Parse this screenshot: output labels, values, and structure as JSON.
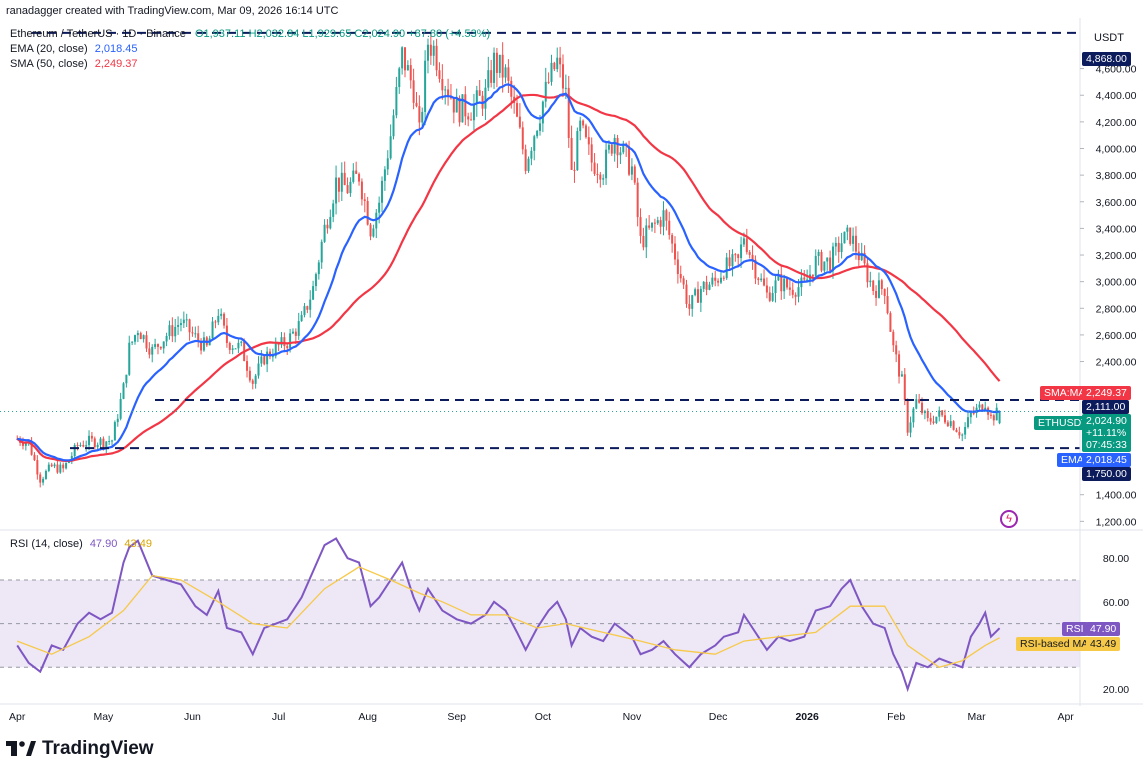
{
  "header": {
    "credit": "ranadagger created with TradingView.com, Mar 09, 2026 16:14 UTC",
    "symbol": "Ethereum / TetherUS · 1D · Binance",
    "ohlc": "O1,937.11  H2,032.84  L1,929.65  C2,024.90  +87.80 (+4.53%)",
    "ema_label": "EMA (20, close)",
    "ema_value": "2,018.45",
    "sma_label": "SMA (50, close)",
    "sma_value": "2,249.37",
    "rsi_label": "RSI (14, close)",
    "rsi_value": "47.90",
    "rsi_ma_value": "43.49",
    "currency": "USDT"
  },
  "brand": {
    "name": "TradingView"
  },
  "colors": {
    "up": "#26a69a",
    "down": "#ef5350",
    "ema": "#2962ff",
    "sma": "#f23645",
    "rsi": "#7e57c2",
    "rsi_ma": "#f7c948",
    "level": "#0c1b5c",
    "band": "#ede7f6"
  },
  "price_labels": {
    "level_top": "4,868.00",
    "sma": "SMA:MA",
    "sma_val": "2,249.37",
    "level_mid": "2,111.00",
    "last_sym": "ETHUSDT",
    "last_val": "2,024.90",
    "last_pct": "+11.11%",
    "countdown": "07:45:33",
    "ema": "EMA",
    "ema_val": "2,018.45",
    "level_low": "1,750.00",
    "rsi": "RSI",
    "rsi_val": "47.90",
    "rsi_ma": "RSI-based MA",
    "rsi_ma_val": "43.49"
  },
  "chart_data": [
    {
      "type": "candlestick",
      "title": "Ethereum / TetherUS · 1D · Binance",
      "y_axis_ticks": [
        "4,600.00",
        "4,400.00",
        "4,200.00",
        "4,000.00",
        "3,800.00",
        "3,600.00",
        "3,400.00",
        "3,200.00",
        "3,000.00",
        "2,800.00",
        "2,600.00",
        "2,400.00",
        "1,400.00",
        "1,200.00"
      ],
      "y_axis_tick_values": [
        4600,
        4400,
        4200,
        4000,
        3800,
        3600,
        3400,
        3200,
        3000,
        2800,
        2600,
        2400,
        1400,
        1200
      ],
      "ylim": [
        1150,
        4950
      ],
      "x_axis_ticks": [
        "Apr",
        "May",
        "Jun",
        "Jul",
        "Aug",
        "Sep",
        "Oct",
        "Nov",
        "Dec",
        "2026",
        "Feb",
        "Mar",
        "Apr"
      ],
      "horizontal_levels": [
        4868,
        2111,
        1750
      ],
      "indicators": [
        {
          "name": "EMA (20, close)",
          "last": 2018.45
        },
        {
          "name": "SMA (50, close)",
          "last": 2249.37
        }
      ],
      "last": {
        "open": 1937.11,
        "high": 2032.84,
        "low": 1929.65,
        "close": 2024.9,
        "change": 87.8,
        "change_pct": 4.53
      },
      "close_path": [
        [
          "2025-04-01",
          1820
        ],
        [
          "2025-04-05",
          1790
        ],
        [
          "2025-04-09",
          1520
        ],
        [
          "2025-04-13",
          1610
        ],
        [
          "2025-04-17",
          1590
        ],
        [
          "2025-04-22",
          1770
        ],
        [
          "2025-04-26",
          1800
        ],
        [
          "2025-04-30",
          1800
        ],
        [
          "2025-05-04",
          1810
        ],
        [
          "2025-05-08",
          2200
        ],
        [
          "2025-05-10",
          2500
        ],
        [
          "2025-05-13",
          2650
        ],
        [
          "2025-05-18",
          2480
        ],
        [
          "2025-05-23",
          2600
        ],
        [
          "2025-05-28",
          2700
        ],
        [
          "2025-06-02",
          2580
        ],
        [
          "2025-06-06",
          2500
        ],
        [
          "2025-06-10",
          2780
        ],
        [
          "2025-06-13",
          2550
        ],
        [
          "2025-06-18",
          2500
        ],
        [
          "2025-06-22",
          2250
        ],
        [
          "2025-06-26",
          2430
        ],
        [
          "2025-06-30",
          2500
        ],
        [
          "2025-07-04",
          2550
        ],
        [
          "2025-07-09",
          2700
        ],
        [
          "2025-07-13",
          2950
        ],
        [
          "2025-07-17",
          3400
        ],
        [
          "2025-07-21",
          3750
        ],
        [
          "2025-07-25",
          3700
        ],
        [
          "2025-07-29",
          3800
        ],
        [
          "2025-08-02",
          3400
        ],
        [
          "2025-08-05",
          3600
        ],
        [
          "2025-08-09",
          4100
        ],
        [
          "2025-08-13",
          4700
        ],
        [
          "2025-08-17",
          4450
        ],
        [
          "2025-08-19",
          4100
        ],
        [
          "2025-08-22",
          4800
        ],
        [
          "2025-08-24",
          4750
        ],
        [
          "2025-08-27",
          4550
        ],
        [
          "2025-09-01",
          4300
        ],
        [
          "2025-09-06",
          4300
        ],
        [
          "2025-09-11",
          4400
        ],
        [
          "2025-09-14",
          4650
        ],
        [
          "2025-09-18",
          4550
        ],
        [
          "2025-09-22",
          4200
        ],
        [
          "2025-09-25",
          3900
        ],
        [
          "2025-09-29",
          4200
        ],
        [
          "2025-10-03",
          4500
        ],
        [
          "2025-10-06",
          4650
        ],
        [
          "2025-10-09",
          4400
        ],
        [
          "2025-10-11",
          3800
        ],
        [
          "2025-10-14",
          4150
        ],
        [
          "2025-10-18",
          3900
        ],
        [
          "2025-10-22",
          3850
        ],
        [
          "2025-10-26",
          4100
        ],
        [
          "2025-10-28",
          4000
        ],
        [
          "2025-11-01",
          3850
        ],
        [
          "2025-11-04",
          3300
        ],
        [
          "2025-11-08",
          3400
        ],
        [
          "2025-11-12",
          3500
        ],
        [
          "2025-11-16",
          3200
        ],
        [
          "2025-11-21",
          2800
        ],
        [
          "2025-11-25",
          2950
        ],
        [
          "2025-11-30",
          3000
        ],
        [
          "2025-12-03",
          3100
        ],
        [
          "2025-12-08",
          3150
        ],
        [
          "2025-12-10",
          3350
        ],
        [
          "2025-12-14",
          3100
        ],
        [
          "2025-12-18",
          2900
        ],
        [
          "2025-12-22",
          3000
        ],
        [
          "2025-12-26",
          2950
        ],
        [
          "2025-12-31",
          2970
        ],
        [
          "2026-01-04",
          3150
        ],
        [
          "2026-01-09",
          3150
        ],
        [
          "2026-01-13",
          3300
        ],
        [
          "2026-01-16",
          3350
        ],
        [
          "2026-01-20",
          3150
        ],
        [
          "2026-01-24",
          2950
        ],
        [
          "2026-01-28",
          2950
        ],
        [
          "2026-01-31",
          2500
        ],
        [
          "2026-02-03",
          2250
        ],
        [
          "2026-02-05",
          1900
        ],
        [
          "2026-02-08",
          2100
        ],
        [
          "2026-02-12",
          1950
        ],
        [
          "2026-02-16",
          2000
        ],
        [
          "2026-02-20",
          1950
        ],
        [
          "2026-02-24",
          1850
        ],
        [
          "2026-02-27",
          2000
        ],
        [
          "2026-03-02",
          2050
        ],
        [
          "2026-03-04",
          2100
        ],
        [
          "2026-03-06",
          1980
        ],
        [
          "2026-03-09",
          2024.9
        ]
      ]
    },
    {
      "type": "line",
      "title": "RSI (14, close)",
      "y_axis_ticks": [
        "80.00",
        "60.00",
        "20.00"
      ],
      "y_axis_tick_values": [
        80,
        60,
        20
      ],
      "ylim": [
        15,
        92
      ],
      "bands": [
        70,
        50,
        30
      ],
      "series": [
        {
          "name": "RSI",
          "last": 47.9,
          "points": [
            [
              "2025-04-01",
              40
            ],
            [
              "2025-04-05",
              32
            ],
            [
              "2025-04-09",
              28
            ],
            [
              "2025-04-13",
              40
            ],
            [
              "2025-04-17",
              38
            ],
            [
              "2025-04-22",
              50
            ],
            [
              "2025-04-26",
              55
            ],
            [
              "2025-04-30",
              52
            ],
            [
              "2025-05-04",
              55
            ],
            [
              "2025-05-08",
              78
            ],
            [
              "2025-05-10",
              85
            ],
            [
              "2025-05-13",
              88
            ],
            [
              "2025-05-18",
              72
            ],
            [
              "2025-05-23",
              70
            ],
            [
              "2025-05-28",
              68
            ],
            [
              "2025-06-02",
              58
            ],
            [
              "2025-06-06",
              54
            ],
            [
              "2025-06-10",
              65
            ],
            [
              "2025-06-13",
              48
            ],
            [
              "2025-06-18",
              46
            ],
            [
              "2025-06-22",
              36
            ],
            [
              "2025-06-26",
              48
            ],
            [
              "2025-06-30",
              50
            ],
            [
              "2025-07-04",
              52
            ],
            [
              "2025-07-09",
              62
            ],
            [
              "2025-07-13",
              74
            ],
            [
              "2025-07-17",
              86
            ],
            [
              "2025-07-21",
              89
            ],
            [
              "2025-07-25",
              80
            ],
            [
              "2025-07-29",
              78
            ],
            [
              "2025-08-02",
              58
            ],
            [
              "2025-08-05",
              62
            ],
            [
              "2025-08-09",
              70
            ],
            [
              "2025-08-13",
              78
            ],
            [
              "2025-08-17",
              62
            ],
            [
              "2025-08-19",
              56
            ],
            [
              "2025-08-22",
              66
            ],
            [
              "2025-08-24",
              62
            ],
            [
              "2025-08-27",
              56
            ],
            [
              "2025-09-01",
              52
            ],
            [
              "2025-09-06",
              50
            ],
            [
              "2025-09-11",
              54
            ],
            [
              "2025-09-14",
              60
            ],
            [
              "2025-09-18",
              56
            ],
            [
              "2025-09-22",
              46
            ],
            [
              "2025-09-25",
              38
            ],
            [
              "2025-09-29",
              48
            ],
            [
              "2025-10-03",
              56
            ],
            [
              "2025-10-06",
              60
            ],
            [
              "2025-10-09",
              52
            ],
            [
              "2025-10-11",
              40
            ],
            [
              "2025-10-14",
              48
            ],
            [
              "2025-10-18",
              44
            ],
            [
              "2025-10-22",
              42
            ],
            [
              "2025-10-26",
              50
            ],
            [
              "2025-10-28",
              48
            ],
            [
              "2025-11-01",
              44
            ],
            [
              "2025-11-04",
              36
            ],
            [
              "2025-11-08",
              38
            ],
            [
              "2025-11-12",
              42
            ],
            [
              "2025-11-16",
              36
            ],
            [
              "2025-11-21",
              30
            ],
            [
              "2025-11-25",
              36
            ],
            [
              "2025-11-30",
              40
            ],
            [
              "2025-12-03",
              44
            ],
            [
              "2025-12-08",
              46
            ],
            [
              "2025-12-10",
              54
            ],
            [
              "2025-12-14",
              46
            ],
            [
              "2025-12-18",
              38
            ],
            [
              "2025-12-22",
              44
            ],
            [
              "2025-12-26",
              42
            ],
            [
              "2025-12-31",
              44
            ],
            [
              "2026-01-04",
              56
            ],
            [
              "2026-01-09",
              58
            ],
            [
              "2026-01-13",
              66
            ],
            [
              "2026-01-16",
              70
            ],
            [
              "2026-01-20",
              58
            ],
            [
              "2026-01-24",
              50
            ],
            [
              "2026-01-28",
              48
            ],
            [
              "2026-01-31",
              36
            ],
            [
              "2026-02-03",
              28
            ],
            [
              "2026-02-05",
              20
            ],
            [
              "2026-02-08",
              32
            ],
            [
              "2026-02-12",
              30
            ],
            [
              "2026-02-16",
              34
            ],
            [
              "2026-02-20",
              32
            ],
            [
              "2026-02-24",
              30
            ],
            [
              "2026-02-27",
              44
            ],
            [
              "2026-03-02",
              50
            ],
            [
              "2026-03-04",
              55
            ],
            [
              "2026-03-06",
              44
            ],
            [
              "2026-03-09",
              47.9
            ]
          ]
        },
        {
          "name": "RSI-based MA",
          "last": 43.49,
          "points": [
            [
              "2025-04-01",
              42
            ],
            [
              "2025-04-13",
              36
            ],
            [
              "2025-04-26",
              44
            ],
            [
              "2025-05-08",
              56
            ],
            [
              "2025-05-18",
              72
            ],
            [
              "2025-05-28",
              70
            ],
            [
              "2025-06-10",
              60
            ],
            [
              "2025-06-22",
              50
            ],
            [
              "2025-07-04",
              48
            ],
            [
              "2025-07-17",
              66
            ],
            [
              "2025-07-29",
              76
            ],
            [
              "2025-08-09",
              70
            ],
            [
              "2025-08-19",
              64
            ],
            [
              "2025-08-27",
              60
            ],
            [
              "2025-09-06",
              54
            ],
            [
              "2025-09-18",
              54
            ],
            [
              "2025-09-29",
              48
            ],
            [
              "2025-10-09",
              50
            ],
            [
              "2025-10-22",
              46
            ],
            [
              "2025-11-04",
              42
            ],
            [
              "2025-11-16",
              38
            ],
            [
              "2025-11-30",
              36
            ],
            [
              "2025-12-10",
              42
            ],
            [
              "2025-12-22",
              44
            ],
            [
              "2026-01-04",
              46
            ],
            [
              "2026-01-16",
              58
            ],
            [
              "2026-01-28",
              58
            ],
            [
              "2026-02-05",
              40
            ],
            [
              "2026-02-16",
              30
            ],
            [
              "2026-02-24",
              33
            ],
            [
              "2026-03-04",
              40
            ],
            [
              "2026-03-09",
              43.49
            ]
          ]
        }
      ]
    }
  ]
}
